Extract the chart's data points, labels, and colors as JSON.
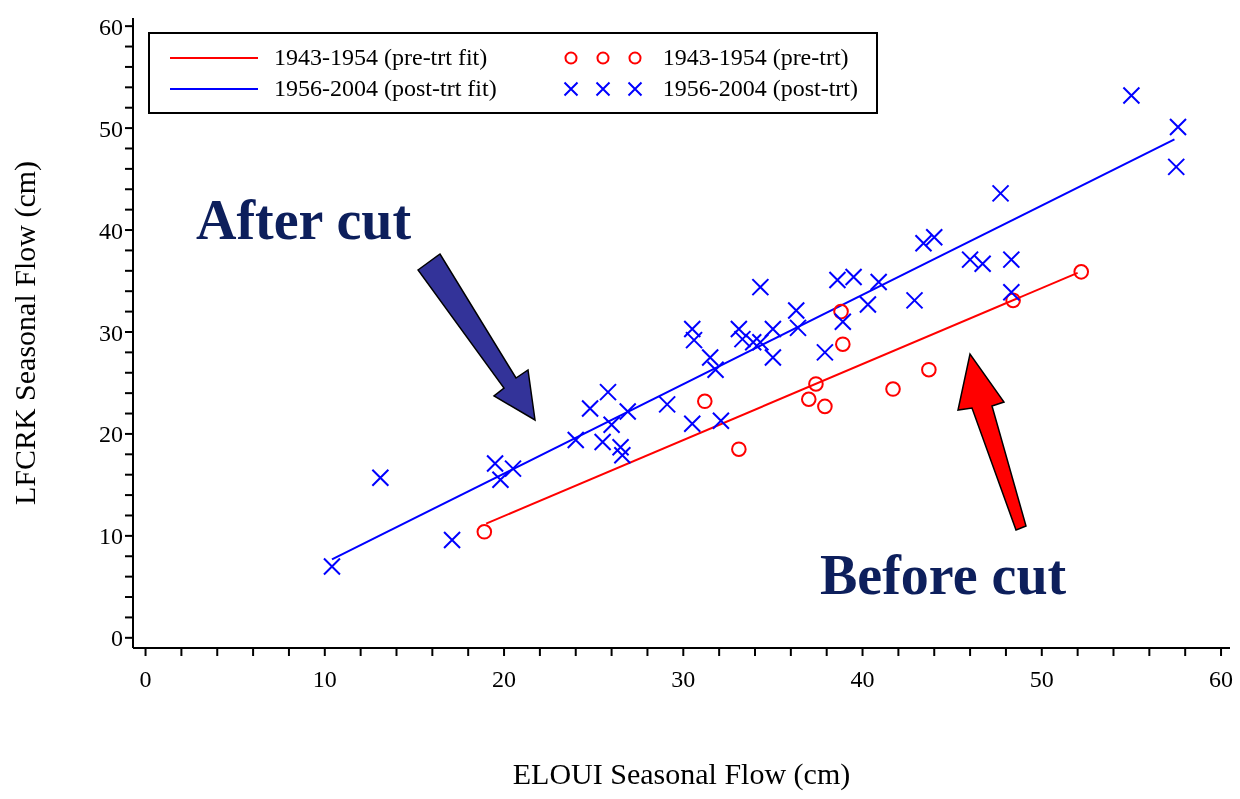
{
  "chart_data": {
    "type": "scatter",
    "xlabel": "ELOUI Seasonal Flow (cm)",
    "ylabel": "LFCRK Seasonal Flow (cm)",
    "xlim": [
      -0.7,
      60.5
    ],
    "ylim": [
      -1,
      60.8
    ],
    "xticks": [
      0,
      {
        "value": 2,
        "label": null
      },
      {
        "value": 4,
        "label": null
      },
      {
        "value": 6,
        "label": null
      },
      {
        "value": 8,
        "label": null
      },
      10,
      {
        "value": 12,
        "label": null
      },
      {
        "value": 14,
        "label": null
      },
      {
        "value": 16,
        "label": null
      },
      {
        "value": 18,
        "label": null
      },
      20,
      {
        "value": 22,
        "label": null
      },
      {
        "value": 24,
        "label": null
      },
      {
        "value": 26,
        "label": null
      },
      {
        "value": 28,
        "label": null
      },
      30,
      {
        "value": 32,
        "label": null
      },
      {
        "value": 34,
        "label": null
      },
      {
        "value": 36,
        "label": null
      },
      {
        "value": 38,
        "label": null
      },
      40,
      {
        "value": 42,
        "label": null
      },
      {
        "value": 44,
        "label": null
      },
      {
        "value": 46,
        "label": null
      },
      {
        "value": 48,
        "label": null
      },
      50,
      {
        "value": 52,
        "label": null
      },
      {
        "value": 54,
        "label": null
      },
      {
        "value": 56,
        "label": null
      },
      {
        "value": 58,
        "label": null
      },
      60
    ],
    "yticks": [
      0,
      {
        "value": 2,
        "label": null
      },
      {
        "value": 4,
        "label": null
      },
      {
        "value": 6,
        "label": null
      },
      {
        "value": 8,
        "label": null
      },
      10,
      {
        "value": 12,
        "label": null
      },
      {
        "value": 14,
        "label": null
      },
      {
        "value": 16,
        "label": null
      },
      {
        "value": 18,
        "label": null
      },
      20,
      {
        "value": 22,
        "label": null
      },
      {
        "value": 24,
        "label": null
      },
      {
        "value": 26,
        "label": null
      },
      {
        "value": 28,
        "label": null
      },
      30,
      {
        "value": 32,
        "label": null
      },
      {
        "value": 34,
        "label": null
      },
      {
        "value": 36,
        "label": null
      },
      {
        "value": 38,
        "label": null
      },
      40,
      {
        "value": 42,
        "label": null
      },
      {
        "value": 44,
        "label": null
      },
      {
        "value": 46,
        "label": null
      },
      {
        "value": 48,
        "label": null
      },
      50,
      {
        "value": 52,
        "label": null
      },
      {
        "value": 54,
        "label": null
      },
      {
        "value": 56,
        "label": null
      },
      {
        "value": 58,
        "label": null
      },
      60
    ],
    "grid": false,
    "legend": "top left",
    "annotations": [
      "After cut",
      "Before cut"
    ],
    "series": [
      {
        "name": "1943-1954 (pre-trt fit)",
        "type": "line",
        "color": "#ff0000",
        "marker": "none",
        "line_style": "solid",
        "x": [
          19.0,
          52.0
        ],
        "values": [
          11.2,
          35.8
        ]
      },
      {
        "name": "1956-2004 (post-trt fit)",
        "type": "line",
        "color": "#0000ff",
        "marker": "none",
        "line_style": "solid",
        "x": [
          10.4,
          57.4
        ],
        "values": [
          7.7,
          48.9
        ]
      },
      {
        "name": "1943-1954 (pre-trt)",
        "color": "#ff0000",
        "marker": "circle",
        "x": [
          18.9,
          31.2,
          33.1,
          37.0,
          37.4,
          37.9,
          38.8,
          38.9,
          41.7,
          43.7,
          48.4,
          52.2
        ],
        "values": [
          10.4,
          23.2,
          18.5,
          23.4,
          24.9,
          22.7,
          32.0,
          28.8,
          24.4,
          26.3,
          33.1,
          35.9
        ]
      },
      {
        "name": "1956-2004 (post-trt)",
        "color": "#0000ff",
        "marker": "cross",
        "x": [
          10.4,
          13.1,
          17.1,
          19.5,
          19.8,
          20.5,
          24.0,
          24.8,
          25.5,
          25.8,
          26.0,
          26.5,
          26.6,
          26.9,
          29.1,
          30.5,
          30.5,
          30.6,
          31.5,
          31.8,
          32.1,
          33.1,
          33.3,
          33.9,
          34.3,
          34.3,
          35.0,
          35.0,
          36.3,
          36.4,
          37.9,
          38.6,
          38.9,
          39.5,
          40.3,
          40.9,
          42.9,
          43.4,
          44.0,
          46.0,
          46.7,
          48.3,
          48.3,
          47.7,
          55.0,
          57.6,
          57.5
        ],
        "values": [
          7.0,
          15.7,
          9.6,
          17.1,
          15.5,
          16.6,
          19.4,
          22.5,
          19.2,
          24.1,
          20.9,
          18.7,
          17.9,
          22.2,
          22.9,
          21.0,
          30.3,
          29.2,
          27.5,
          26.3,
          21.3,
          30.3,
          29.3,
          29.0,
          29.0,
          34.4,
          30.3,
          27.5,
          32.1,
          30.4,
          28.0,
          35.1,
          31.0,
          35.4,
          32.7,
          34.9,
          33.1,
          38.7,
          39.3,
          37.1,
          36.7,
          33.9,
          37.1,
          43.6,
          53.2,
          50.1,
          46.2
        ]
      }
    ]
  }
}
